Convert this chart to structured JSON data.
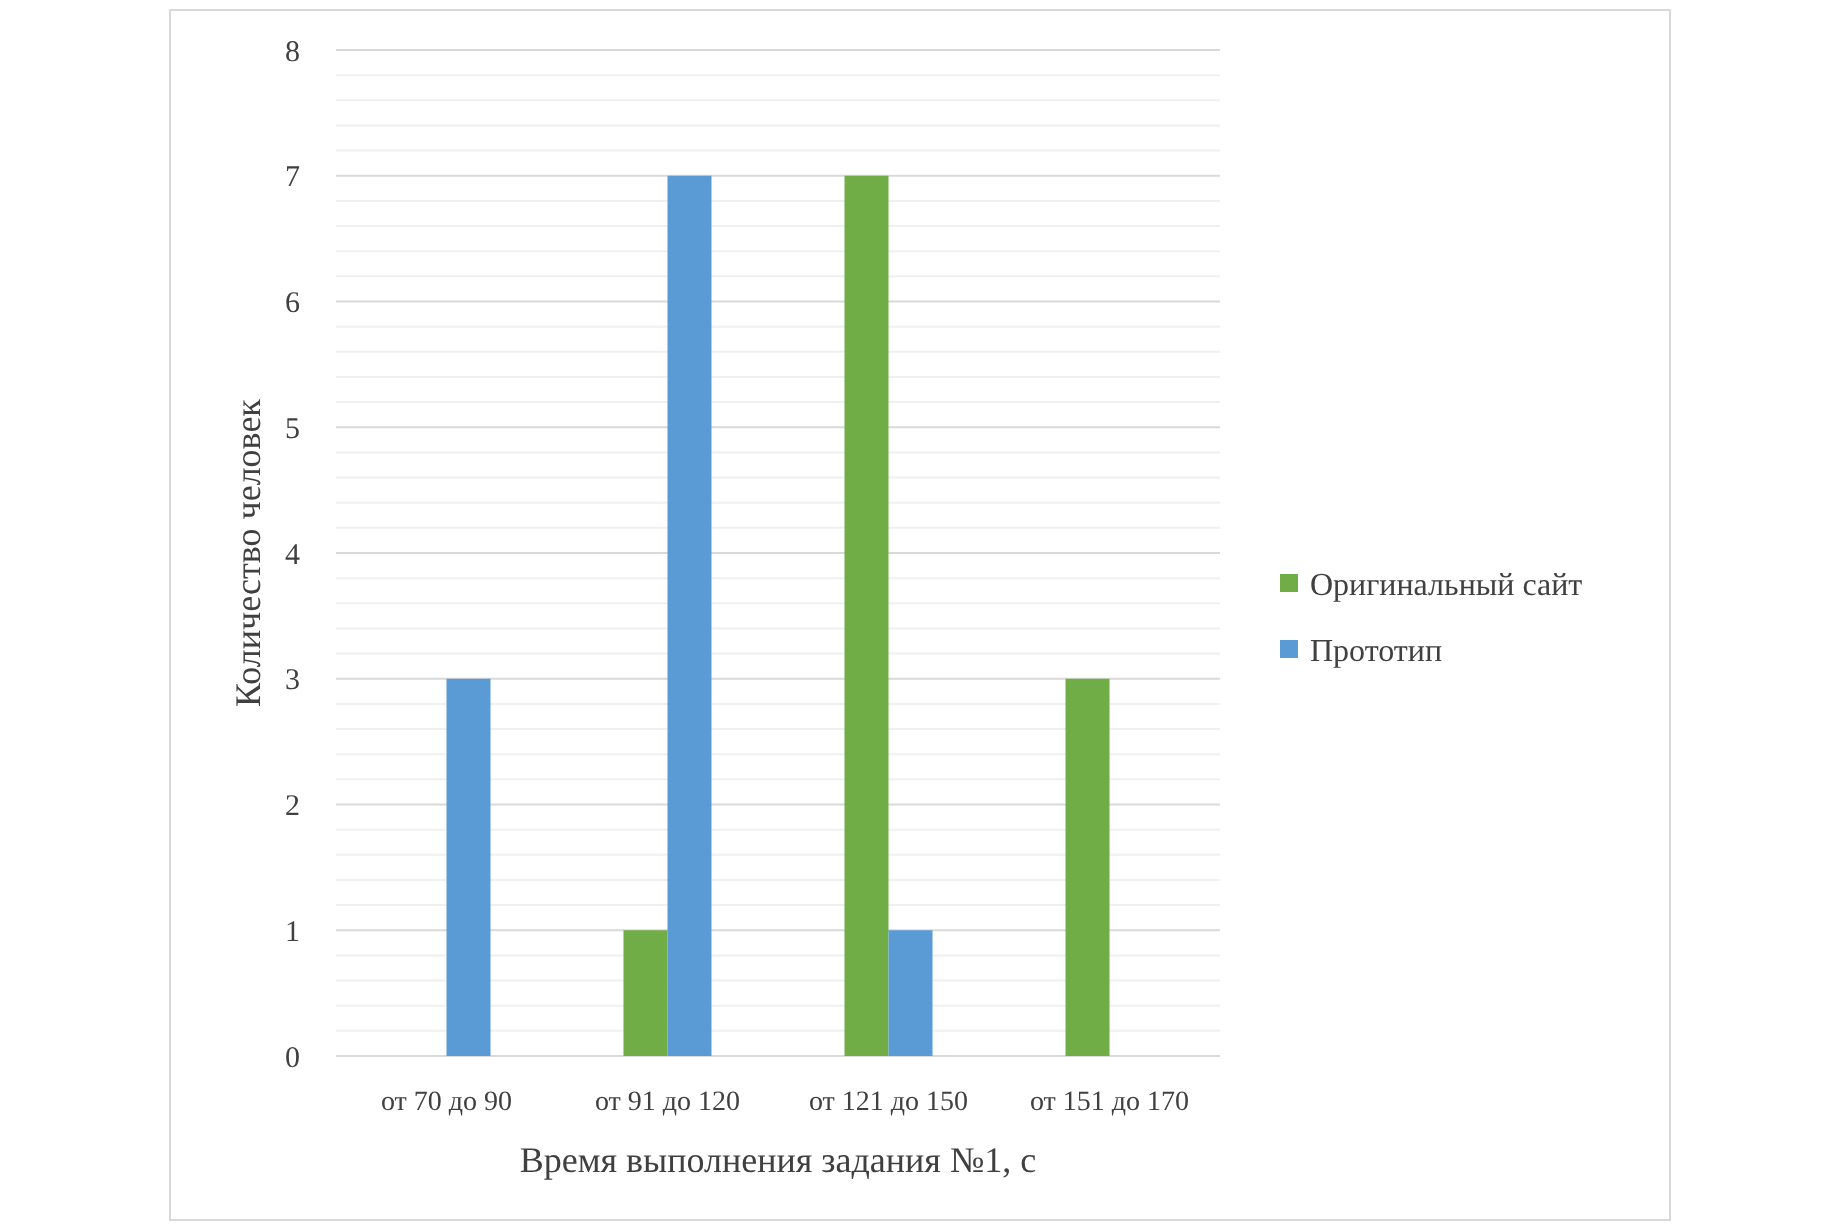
{
  "chart_data": {
    "type": "bar",
    "xlabel": "Время выполнения задания №1, с",
    "ylabel": "Количество человек",
    "categories": [
      "от 70 до 90",
      "от 91 до 120",
      "от 121 до 150",
      "от 151 до 170"
    ],
    "series": [
      {
        "name": "Оригинальный сайт",
        "color": "#70ad47",
        "values": [
          0,
          1,
          7,
          3
        ]
      },
      {
        "name": "Прототип",
        "color": "#5b9bd5",
        "values": [
          3,
          7,
          1,
          0
        ]
      }
    ],
    "ylim": [
      0,
      8
    ],
    "yticks": [
      0,
      {
        "value": 0.2,
        "label": null
      },
      {
        "value": 0.4,
        "label": null
      },
      {
        "value": 0.6,
        "label": null
      },
      {
        "value": 0.8,
        "label": null
      },
      1,
      {
        "value": 1.2,
        "label": null
      },
      {
        "value": 1.4,
        "label": null
      },
      {
        "value": 1.6,
        "label": null
      },
      {
        "value": 1.8,
        "label": null
      },
      2,
      {
        "value": 2.2,
        "label": null
      },
      {
        "value": 2.4,
        "label": null
      },
      {
        "value": 2.6,
        "label": null
      },
      {
        "value": 2.8,
        "label": null
      },
      3,
      {
        "value": 3.2,
        "label": null
      },
      {
        "value": 3.4,
        "label": null
      },
      {
        "value": 3.6,
        "label": null
      },
      {
        "value": 3.8,
        "label": null
      },
      4,
      {
        "value": 4.2,
        "label": null
      },
      {
        "value": 4.4,
        "label": null
      },
      {
        "value": 4.6,
        "label": null
      },
      {
        "value": 4.8,
        "label": null
      },
      5,
      {
        "value": 5.2,
        "label": null
      },
      {
        "value": 5.4,
        "label": null
      },
      {
        "value": 5.6,
        "label": null
      },
      {
        "value": 5.8,
        "label": null
      },
      6,
      {
        "value": 6.2,
        "label": null
      },
      {
        "value": 6.4,
        "label": null
      },
      {
        "value": 6.6,
        "label": null
      },
      {
        "value": 6.8,
        "label": null
      },
      7,
      {
        "value": 7.2,
        "label": null
      },
      {
        "value": 7.4,
        "label": null
      },
      {
        "value": 7.6,
        "label": null
      },
      {
        "value": 7.8,
        "label": null
      },
      8
    ],
    "grid": true,
    "legend": "right"
  }
}
